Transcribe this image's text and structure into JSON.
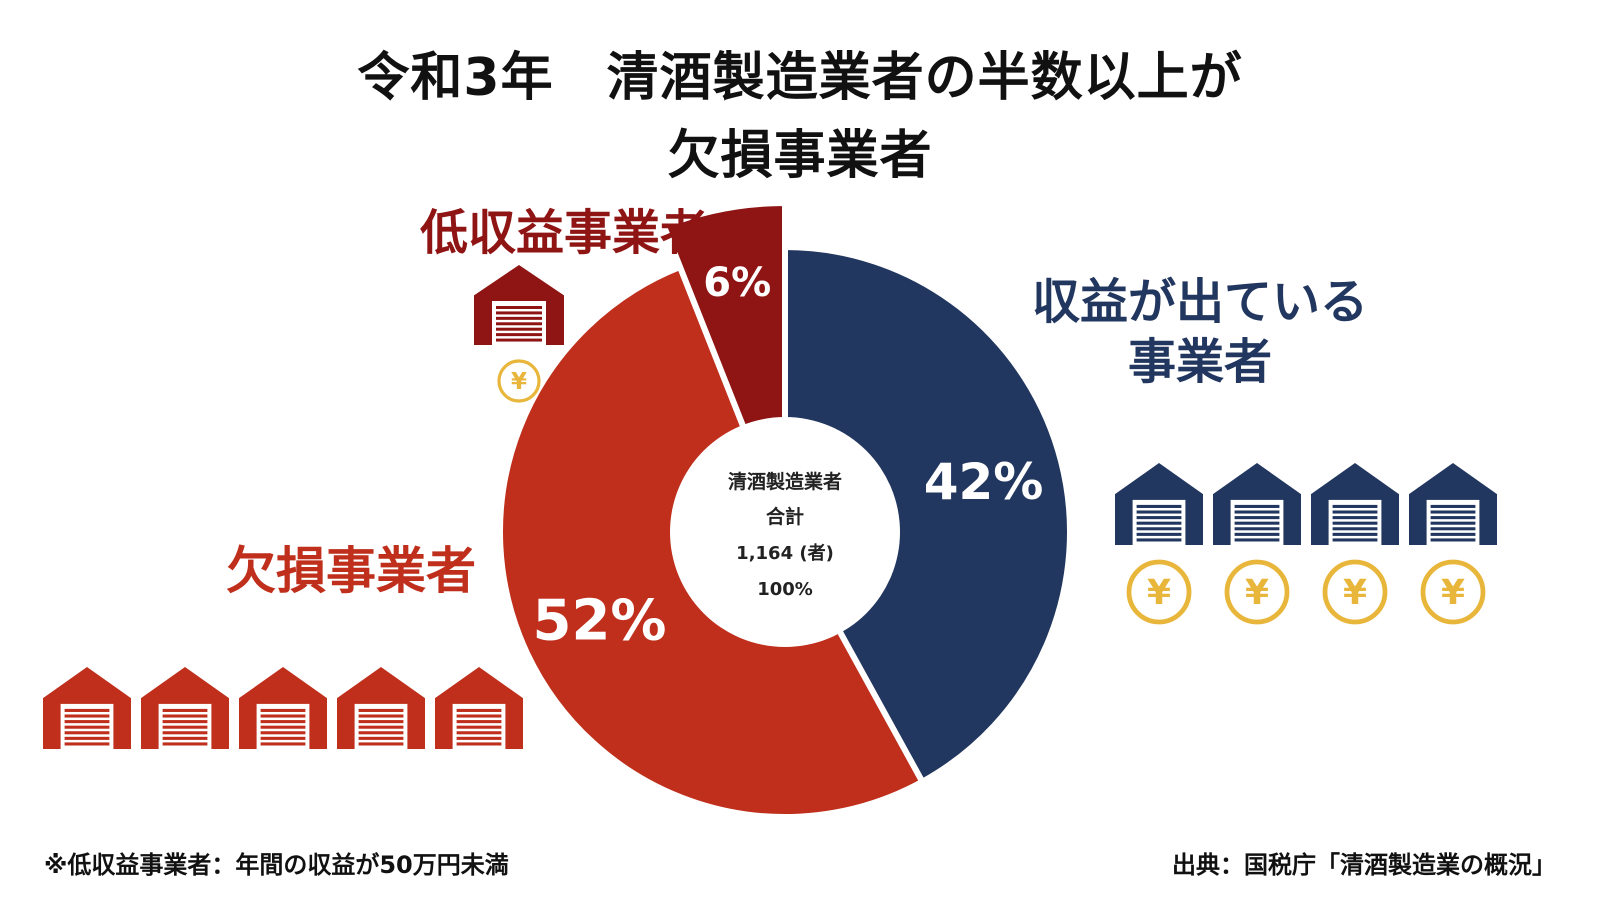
{
  "title": {
    "line1": "令和3年　清酒製造業者の半数以上が",
    "line2": "欠損事業者"
  },
  "labels": {
    "low_income": "低収益事業者",
    "profit_line1": "収益が出ている",
    "profit_line2": "事業者",
    "deficit": "欠損事業者"
  },
  "center": {
    "line1": "清酒製造業者",
    "line2": "合計",
    "line3": "1,164 (者)",
    "line4": "100%"
  },
  "footnote": "※低収益事業者：年間の収益が50万円未満",
  "source": "出典：国税庁「清酒製造業の概況」",
  "colors": {
    "profit": "#22375f",
    "deficit": "#bf2f1c",
    "low_income": "#8f1414",
    "yen": "#e8b63b"
  },
  "icons": {
    "warehouse": "warehouse-icon",
    "yen": "yen-coin-icon"
  },
  "chart_data": {
    "type": "pie",
    "donut": true,
    "series": [
      {
        "name": "収益が出ている事業者",
        "value": 42,
        "label": "42%"
      },
      {
        "name": "欠損事業者",
        "value": 52,
        "label": "52%"
      },
      {
        "name": "低収益事業者",
        "value": 6,
        "label": "6%"
      }
    ],
    "total": "1,164 (者)",
    "start": "top",
    "direction": "clockwise"
  }
}
